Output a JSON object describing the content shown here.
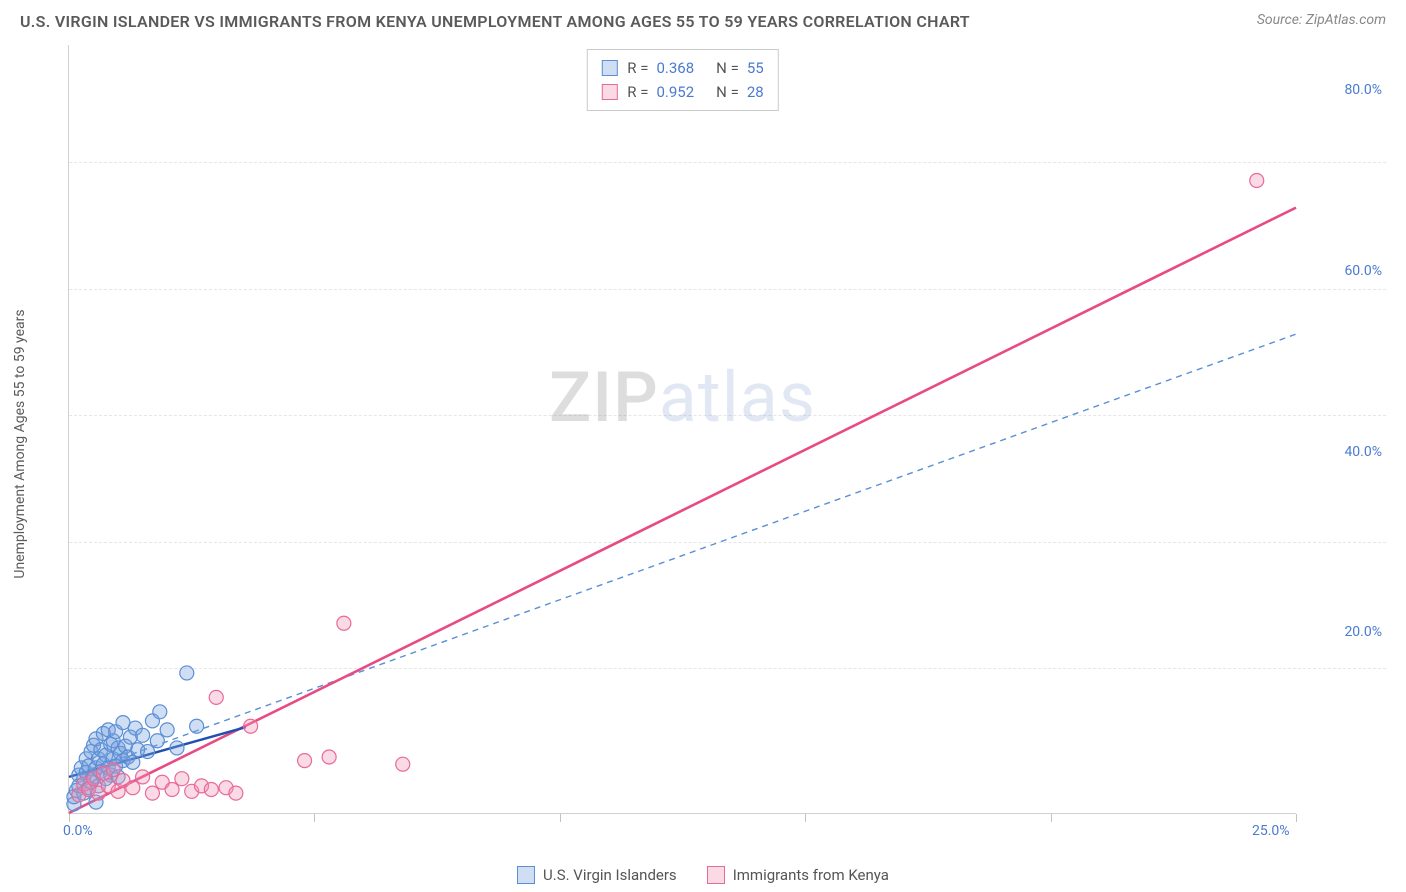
{
  "header": {
    "title": "U.S. VIRGIN ISLANDER VS IMMIGRANTS FROM KENYA UNEMPLOYMENT AMONG AGES 55 TO 59 YEARS CORRELATION CHART",
    "source": "Source: ZipAtlas.com"
  },
  "yaxis_label": "Unemployment Among Ages 55 to 59 years",
  "watermark": {
    "part1": "ZIP",
    "part2": "atlas"
  },
  "chart": {
    "type": "scatter",
    "xlim": [
      0,
      25
    ],
    "ylim": [
      0,
      85
    ],
    "x_ticks": [
      0,
      5,
      10,
      15,
      20,
      25
    ],
    "x_tick_labels": {
      "0": "0.0%",
      "25": "25.0%"
    },
    "y_ticks": [
      20,
      40,
      60,
      80
    ],
    "y_tick_labels": [
      "20.0%",
      "40.0%",
      "60.0%",
      "80.0%"
    ],
    "y_grid": [
      16,
      30,
      44,
      58,
      72
    ],
    "grid_color": "#e6e6e6",
    "axis_color": "#d0d0d0",
    "tick_label_color": "#4a7bd0",
    "marker_radius": 7,
    "marker_stroke_width": 1.2,
    "series": [
      {
        "key": "usvi",
        "label": "U.S. Virgin Islanders",
        "fill": "rgba(120,160,220,0.35)",
        "stroke": "#5a8fd6",
        "r_value": "0.368",
        "n_value": "55",
        "trend_solid": {
          "x1": 0.0,
          "y1": 4.0,
          "x2": 3.6,
          "y2": 9.5,
          "color": "#1f4fb0",
          "width": 2.4
        },
        "trend_dash": {
          "x1": 0.0,
          "y1": 4.0,
          "x2": 25.0,
          "y2": 53.0,
          "color": "#5a8fd6",
          "width": 1.4,
          "dash": "6 5"
        },
        "points": [
          [
            0.1,
            1.0
          ],
          [
            0.1,
            1.8
          ],
          [
            0.15,
            2.5
          ],
          [
            0.2,
            3.0
          ],
          [
            0.2,
            4.2
          ],
          [
            0.25,
            5.0
          ],
          [
            0.3,
            2.2
          ],
          [
            0.3,
            3.8
          ],
          [
            0.35,
            4.5
          ],
          [
            0.35,
            6.0
          ],
          [
            0.4,
            2.8
          ],
          [
            0.4,
            5.2
          ],
          [
            0.45,
            3.4
          ],
          [
            0.45,
            6.8
          ],
          [
            0.5,
            4.0
          ],
          [
            0.5,
            7.5
          ],
          [
            0.55,
            5.0
          ],
          [
            0.55,
            8.2
          ],
          [
            0.6,
            3.0
          ],
          [
            0.6,
            6.0
          ],
          [
            0.65,
            4.6
          ],
          [
            0.65,
            7.0
          ],
          [
            0.7,
            5.4
          ],
          [
            0.7,
            8.8
          ],
          [
            0.75,
            3.8
          ],
          [
            0.75,
            6.4
          ],
          [
            0.8,
            5.0
          ],
          [
            0.8,
            9.2
          ],
          [
            0.85,
            4.2
          ],
          [
            0.85,
            7.6
          ],
          [
            0.9,
            6.0
          ],
          [
            0.9,
            8.0
          ],
          [
            0.95,
            5.2
          ],
          [
            0.95,
            9.0
          ],
          [
            1.0,
            4.0
          ],
          [
            1.0,
            7.2
          ],
          [
            1.05,
            6.6
          ],
          [
            1.1,
            5.8
          ],
          [
            1.1,
            10.0
          ],
          [
            1.15,
            7.4
          ],
          [
            1.2,
            6.2
          ],
          [
            1.25,
            8.4
          ],
          [
            1.3,
            5.6
          ],
          [
            1.35,
            9.4
          ],
          [
            1.4,
            7.0
          ],
          [
            1.5,
            8.6
          ],
          [
            1.6,
            6.8
          ],
          [
            1.7,
            10.2
          ],
          [
            1.8,
            8.0
          ],
          [
            2.0,
            9.2
          ],
          [
            2.2,
            7.2
          ],
          [
            2.4,
            15.5
          ],
          [
            2.6,
            9.6
          ],
          [
            1.85,
            11.2
          ],
          [
            0.55,
            1.2
          ]
        ]
      },
      {
        "key": "kenya",
        "label": "Immigrants from Kenya",
        "fill": "rgba(240,150,180,0.35)",
        "stroke": "#e86a9a",
        "r_value": "0.952",
        "n_value": "28",
        "trend_solid": {
          "x1": 0.0,
          "y1": 0.0,
          "x2": 25.0,
          "y2": 67.0,
          "color": "#e84a84",
          "width": 2.6
        },
        "points": [
          [
            0.2,
            2.0
          ],
          [
            0.3,
            3.2
          ],
          [
            0.4,
            2.6
          ],
          [
            0.5,
            3.8
          ],
          [
            0.6,
            2.2
          ],
          [
            0.7,
            4.4
          ],
          [
            0.8,
            3.0
          ],
          [
            0.9,
            4.8
          ],
          [
            1.0,
            2.4
          ],
          [
            1.1,
            3.6
          ],
          [
            1.3,
            2.8
          ],
          [
            1.5,
            4.0
          ],
          [
            1.7,
            2.2
          ],
          [
            1.9,
            3.4
          ],
          [
            2.1,
            2.6
          ],
          [
            2.3,
            3.8
          ],
          [
            2.5,
            2.4
          ],
          [
            2.7,
            3.0
          ],
          [
            2.9,
            2.6
          ],
          [
            3.2,
            2.8
          ],
          [
            3.0,
            12.8
          ],
          [
            3.7,
            9.6
          ],
          [
            4.8,
            5.8
          ],
          [
            5.3,
            6.2
          ],
          [
            6.8,
            5.4
          ],
          [
            5.6,
            21.0
          ],
          [
            24.2,
            70.0
          ],
          [
            3.4,
            2.2
          ]
        ]
      }
    ]
  },
  "legend_labels": {
    "R": "R =",
    "N": "N ="
  }
}
